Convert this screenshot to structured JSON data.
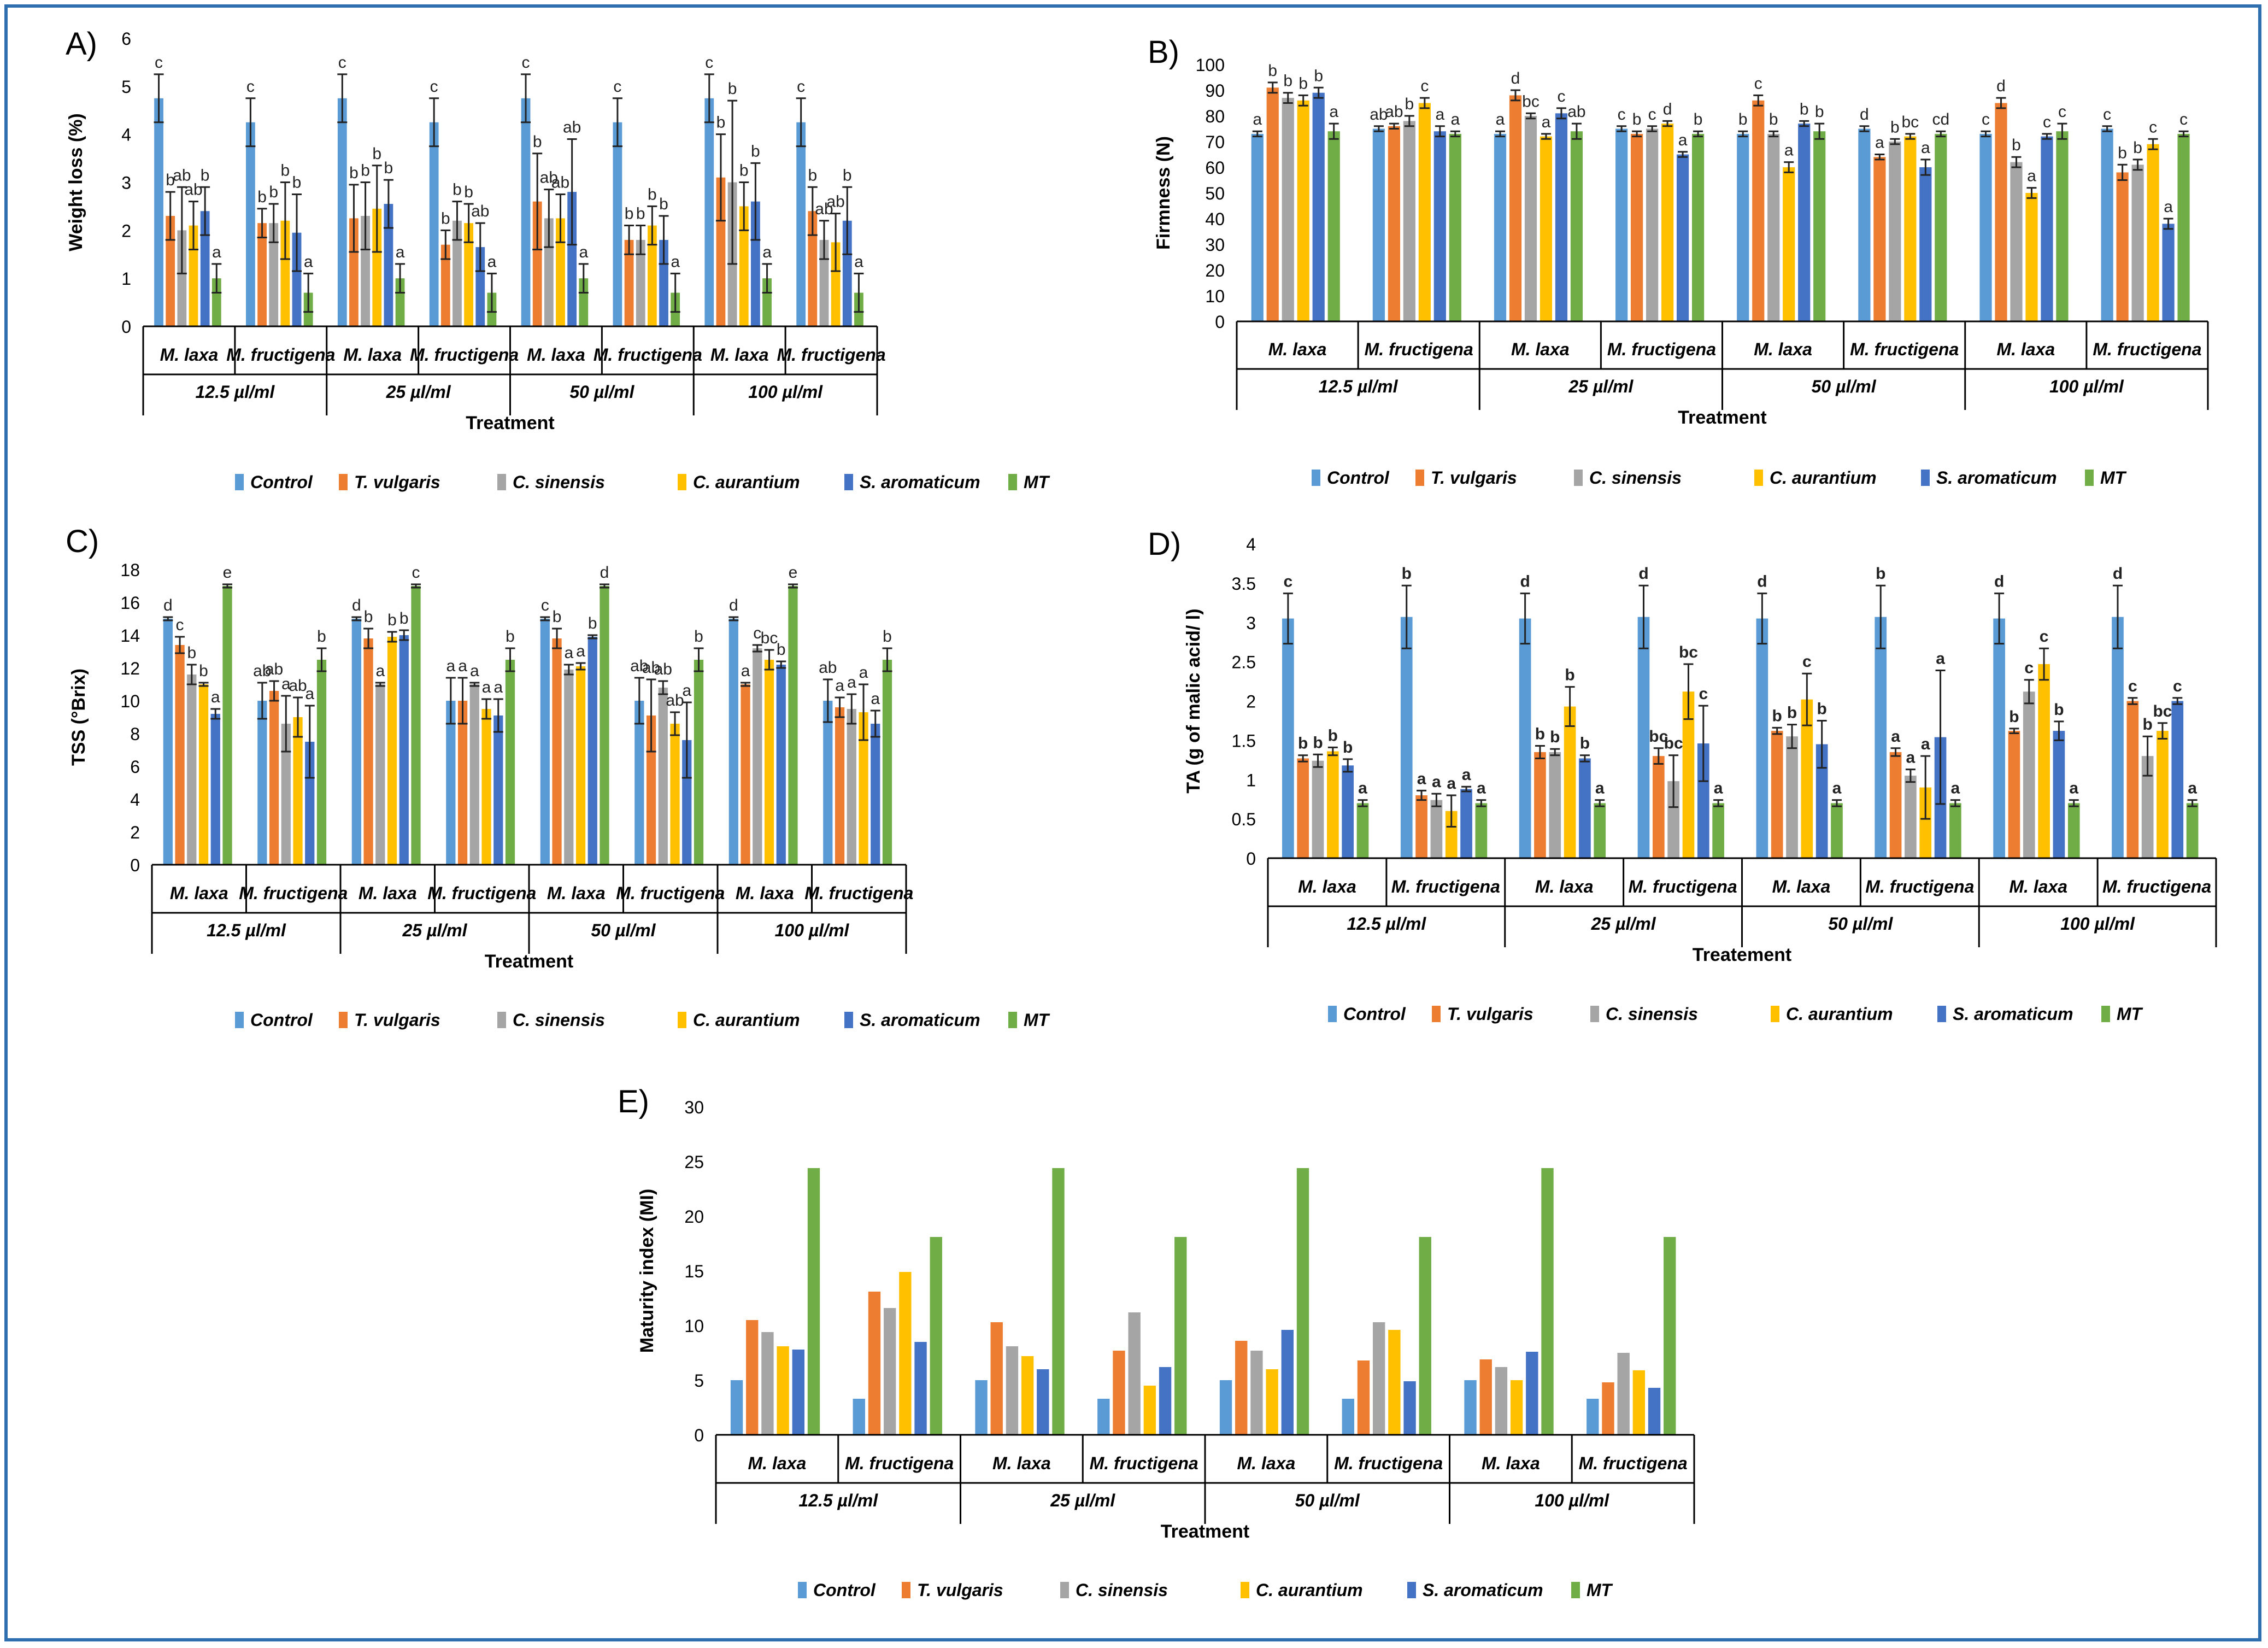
{
  "colors": {
    "Control": "#5b9bd5",
    "T. vulgaris": "#ed7d31",
    "C. sinensis": "#a5a5a5",
    "C. aurantium": "#ffc000",
    "S. aromaticum": "#4472c4",
    "MT": "#70ad47",
    "frame": "#2f6fb0"
  },
  "legend": [
    "Control",
    "T.  vulgaris",
    "C.  sinensis",
    "C. aurantium",
    "S. aromaticum",
    "MT"
  ],
  "groups": {
    "pathogens": [
      "M. laxa",
      "M. fructigena"
    ],
    "concentrations": [
      "12.5 µl/ml",
      "25 µl/ml",
      "50 µl/ml",
      "100 µl/ml"
    ]
  },
  "chart_data": [
    {
      "panel": "A)",
      "type": "bar",
      "ylabel": "Weight loss (%)",
      "xlabel": "Treatment",
      "ylim": [
        0,
        6
      ],
      "ticks": [
        0,
        1,
        2,
        3,
        4,
        5,
        6
      ],
      "series_names": [
        "Control",
        "T. vulgaris",
        "C. sinensis",
        "C. aurantium",
        "S. aromaticum",
        "MT"
      ],
      "values": [
        [
          4.75,
          2.3,
          2.0,
          2.1,
          2.4,
          1.0
        ],
        [
          4.25,
          2.15,
          2.15,
          2.2,
          1.95,
          0.7
        ],
        [
          4.75,
          2.25,
          2.3,
          2.45,
          2.55,
          1.0
        ],
        [
          4.25,
          1.7,
          2.2,
          2.15,
          1.65,
          0.7
        ],
        [
          4.75,
          2.6,
          2.25,
          2.25,
          2.8,
          1.0
        ],
        [
          4.25,
          1.8,
          1.8,
          2.1,
          1.8,
          0.7
        ],
        [
          4.75,
          3.1,
          3.0,
          2.5,
          2.6,
          1.0
        ],
        [
          4.25,
          2.4,
          1.8,
          1.75,
          2.2,
          0.7
        ]
      ],
      "errors": [
        [
          0.5,
          0.5,
          0.9,
          0.5,
          0.5,
          0.3
        ],
        [
          0.5,
          0.3,
          0.4,
          0.8,
          0.8,
          0.4
        ],
        [
          0.5,
          0.7,
          0.7,
          0.9,
          0.5,
          0.3
        ],
        [
          0.5,
          0.3,
          0.4,
          0.4,
          0.5,
          0.4
        ],
        [
          0.5,
          1.0,
          0.6,
          0.5,
          1.1,
          0.3
        ],
        [
          0.5,
          0.3,
          0.3,
          0.4,
          0.5,
          0.4
        ],
        [
          0.5,
          0.9,
          1.7,
          0.5,
          0.8,
          0.3
        ],
        [
          0.5,
          0.5,
          0.4,
          0.6,
          0.7,
          0.4
        ]
      ],
      "letters": [
        [
          "c",
          "b",
          "ab",
          "ab",
          "b",
          "a"
        ],
        [
          "c",
          "b",
          "b",
          "b",
          "b",
          "a"
        ],
        [
          "c",
          "b",
          "b",
          "b",
          "b",
          "a"
        ],
        [
          "c",
          "b",
          "b",
          "b",
          "ab",
          "a"
        ],
        [
          "c",
          "b",
          "ab",
          "ab",
          "ab",
          "a"
        ],
        [
          "c",
          "b",
          "b",
          "b",
          "b",
          "a"
        ],
        [
          "c",
          "b",
          "b",
          "b",
          "b",
          "a"
        ],
        [
          "c",
          "b",
          "ab",
          "ab",
          "b",
          "a"
        ]
      ]
    },
    {
      "panel": "B)",
      "type": "bar",
      "ylabel": "Firmness (N)",
      "xlabel": "Treatment",
      "ylim": [
        0,
        100
      ],
      "ticks": [
        0,
        10,
        20,
        30,
        40,
        50,
        60,
        70,
        80,
        90,
        100
      ],
      "series_names": [
        "Control",
        "T. vulgaris",
        "C. sinensis",
        "C. aurantium",
        "S. aromaticum",
        "MT"
      ],
      "values": [
        [
          73,
          91,
          87,
          86,
          89,
          74
        ],
        [
          75,
          76,
          78,
          85,
          74,
          73
        ],
        [
          73,
          88,
          80,
          72,
          81,
          74
        ],
        [
          75,
          73,
          75,
          77,
          65,
          73
        ],
        [
          73,
          86,
          73,
          60,
          77,
          74
        ],
        [
          75,
          64,
          70,
          72,
          60,
          73
        ],
        [
          73,
          85,
          62,
          50,
          72,
          74
        ],
        [
          75,
          58,
          61,
          69,
          38,
          73
        ]
      ],
      "errors": [
        [
          1,
          2,
          2,
          2,
          2,
          3
        ],
        [
          1,
          1,
          2,
          2,
          2,
          1
        ],
        [
          1,
          2,
          1,
          1,
          2,
          3
        ],
        [
          1,
          1,
          1,
          1,
          1,
          1
        ],
        [
          1,
          2,
          1,
          2,
          1,
          3
        ],
        [
          1,
          1,
          1,
          1,
          3,
          1
        ],
        [
          1,
          2,
          2,
          2,
          1,
          3
        ],
        [
          1,
          3,
          2,
          2,
          2,
          1
        ]
      ],
      "letters": [
        [
          "a",
          "b",
          "b",
          "b",
          "b",
          "a"
        ],
        [
          "ab",
          "ab",
          "b",
          "c",
          "a",
          "a"
        ],
        [
          "a",
          "d",
          "bc",
          "a",
          "c",
          "ab"
        ],
        [
          "c",
          "b",
          "c",
          "d",
          "a",
          "b"
        ],
        [
          "b",
          "c",
          "b",
          "a",
          "b",
          "b"
        ],
        [
          "d",
          "a",
          "b",
          "bc",
          "a",
          "cd"
        ],
        [
          "c",
          "d",
          "b",
          "a",
          "c",
          "c"
        ],
        [
          "c",
          "b",
          "b",
          "c",
          "a",
          "c"
        ]
      ]
    },
    {
      "panel": "C)",
      "type": "bar",
      "ylabel": "TSS (°Brix)",
      "xlabel": "Treatment",
      "ylim": [
        0,
        18
      ],
      "ticks": [
        0,
        2,
        4,
        6,
        8,
        10,
        12,
        14,
        16,
        18
      ],
      "series_names": [
        "Control",
        "T. vulgaris",
        "C. sinensis",
        "C. aurantium",
        "S. aromaticum",
        "MT"
      ],
      "values": [
        [
          15.0,
          13.4,
          11.6,
          11.0,
          9.2,
          17.0
        ],
        [
          10.0,
          10.6,
          8.6,
          9.0,
          7.5,
          12.5
        ],
        [
          15.0,
          13.8,
          11.0,
          13.9,
          14.0,
          17.0
        ],
        [
          10.0,
          10.0,
          11.0,
          9.5,
          9.1,
          12.5
        ],
        [
          15.0,
          13.8,
          11.9,
          12.1,
          13.9,
          17.0
        ],
        [
          10.0,
          9.1,
          10.8,
          8.6,
          7.6,
          12.5
        ],
        [
          15.0,
          11.0,
          13.2,
          12.5,
          12.2,
          17.0
        ],
        [
          10.0,
          9.6,
          9.5,
          9.3,
          8.6,
          12.5
        ]
      ],
      "errors": [
        [
          0.1,
          0.5,
          0.6,
          0.1,
          0.3,
          0.1
        ],
        [
          1.1,
          0.6,
          1.7,
          1.2,
          2.2,
          0.7
        ],
        [
          0.1,
          0.6,
          0.1,
          0.3,
          0.3,
          0.1
        ],
        [
          1.4,
          1.4,
          0.1,
          0.6,
          1.0,
          0.7
        ],
        [
          0.1,
          0.6,
          0.3,
          0.2,
          0.1,
          0.1
        ],
        [
          1.4,
          2.2,
          0.4,
          0.7,
          2.3,
          0.7
        ],
        [
          0.1,
          0.1,
          0.2,
          0.6,
          0.2,
          0.1
        ],
        [
          1.3,
          0.6,
          0.9,
          1.7,
          0.8,
          0.7
        ]
      ],
      "letters": [
        [
          "d",
          "c",
          "b",
          "b",
          "a",
          "e"
        ],
        [
          "ab",
          "ab",
          "a",
          "ab",
          "a",
          "b"
        ],
        [
          "d",
          "b",
          "a",
          "b",
          "b",
          "c"
        ],
        [
          "a",
          "a",
          "a",
          "a",
          "a",
          "b"
        ],
        [
          "c",
          "b",
          "a",
          "a",
          "b",
          "d"
        ],
        [
          "ab",
          "ab",
          "ab",
          "ab",
          "a",
          "b"
        ],
        [
          "d",
          "a",
          "c",
          "bc",
          "b",
          "e"
        ],
        [
          "ab",
          "a",
          "a",
          "a",
          "a",
          "b"
        ]
      ]
    },
    {
      "panel": "D)",
      "type": "bar",
      "ylabel": "TA (g of malic acid/ l)",
      "xlabel": "Treatement",
      "ylim": [
        0,
        4
      ],
      "ticks": [
        0,
        0.5,
        1,
        1.5,
        2,
        2.5,
        3,
        3.5,
        4
      ],
      "series_names": [
        "Control",
        "T. vulgaris",
        "C. sinensis",
        "C. aurantium",
        "S. aromaticum",
        "MT"
      ],
      "values": [
        [
          3.05,
          1.27,
          1.24,
          1.36,
          1.18,
          0.7
        ],
        [
          3.07,
          0.8,
          0.74,
          0.6,
          0.88,
          0.7
        ],
        [
          3.05,
          1.35,
          1.35,
          1.93,
          1.27,
          0.7
        ],
        [
          3.07,
          1.3,
          0.98,
          2.12,
          1.46,
          0.7
        ],
        [
          3.05,
          1.62,
          1.55,
          2.02,
          1.45,
          0.7
        ],
        [
          3.07,
          1.35,
          1.05,
          0.9,
          1.54,
          0.7
        ],
        [
          3.05,
          1.62,
          2.12,
          2.47,
          1.62,
          0.7
        ],
        [
          3.07,
          2.0,
          1.3,
          1.62,
          2.0,
          0.7
        ]
      ],
      "errors": [
        [
          0.32,
          0.04,
          0.08,
          0.05,
          0.08,
          0.04
        ],
        [
          0.4,
          0.06,
          0.08,
          0.2,
          0.03,
          0.04
        ],
        [
          0.32,
          0.08,
          0.04,
          0.25,
          0.04,
          0.04
        ],
        [
          0.4,
          0.1,
          0.33,
          0.35,
          0.48,
          0.04
        ],
        [
          0.32,
          0.04,
          0.15,
          0.33,
          0.3,
          0.04
        ],
        [
          0.4,
          0.05,
          0.08,
          0.4,
          0.85,
          0.04
        ],
        [
          0.32,
          0.03,
          0.15,
          0.2,
          0.12,
          0.04
        ],
        [
          0.4,
          0.04,
          0.25,
          0.1,
          0.04,
          0.04
        ]
      ],
      "letters": [
        [
          "c",
          "b",
          "b",
          "b",
          "b",
          "a"
        ],
        [
          "b",
          "a",
          "a",
          "a",
          "a",
          "a"
        ],
        [
          "d",
          "b",
          "b",
          "b",
          "b",
          "a"
        ],
        [
          "d",
          "bc",
          "bc",
          "bc",
          "c",
          "a"
        ],
        [
          "d",
          "b",
          "b",
          "c",
          "b",
          "a"
        ],
        [
          "b",
          "a",
          "a",
          "a",
          "a",
          "a"
        ],
        [
          "d",
          "b",
          "c",
          "c",
          "b",
          "a"
        ],
        [
          "d",
          "c",
          "b",
          "bc",
          "c",
          "a"
        ]
      ]
    },
    {
      "panel": "E)",
      "type": "bar",
      "ylabel": "Maturity index (MI)",
      "xlabel": "Treatment",
      "ylim": [
        0,
        30
      ],
      "ticks": [
        0,
        5,
        10,
        15,
        20,
        25,
        30
      ],
      "series_names": [
        "Control",
        "T. vulgaris",
        "C. sinensis",
        "C. aurantium",
        "S. aromaticum",
        "MT"
      ],
      "values": [
        [
          5.0,
          10.5,
          9.4,
          8.1,
          7.8,
          24.4
        ],
        [
          3.3,
          13.1,
          11.6,
          14.9,
          8.5,
          18.1
        ],
        [
          5.0,
          10.3,
          8.1,
          7.2,
          6.0,
          24.4
        ],
        [
          3.3,
          7.7,
          11.2,
          4.5,
          6.2,
          18.1
        ],
        [
          5.0,
          8.6,
          7.7,
          6.0,
          9.6,
          24.4
        ],
        [
          3.3,
          6.8,
          10.3,
          9.6,
          4.9,
          18.1
        ],
        [
          5.0,
          6.9,
          6.2,
          5.0,
          7.6,
          24.4
        ],
        [
          3.3,
          4.8,
          7.5,
          5.9,
          4.3,
          18.1
        ]
      ],
      "errors": null,
      "letters": null
    }
  ]
}
